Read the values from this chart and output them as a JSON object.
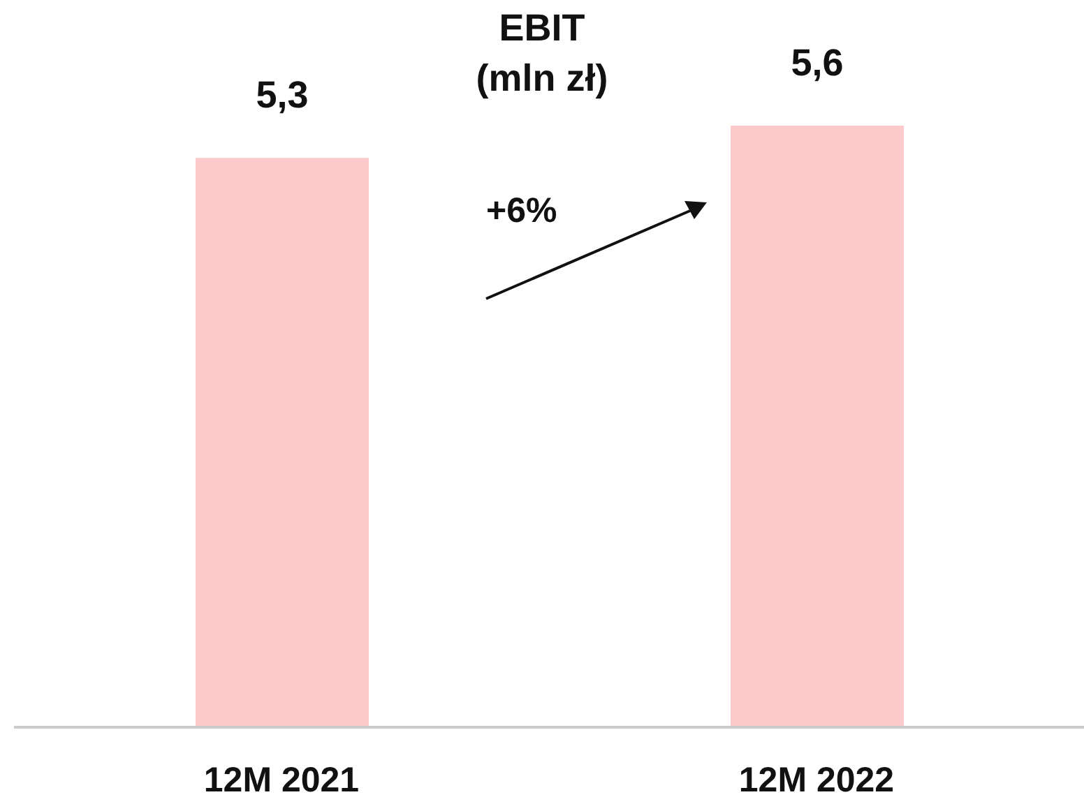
{
  "chart_data": {
    "type": "bar",
    "title": "EBIT\n(mln zł)",
    "categories": [
      "12M 2021",
      "12M 2022"
    ],
    "values": [
      5.3,
      5.6
    ],
    "value_labels": [
      "5,3",
      "5,6"
    ],
    "color": "#fccaca",
    "annotations": [
      "+6%"
    ]
  }
}
